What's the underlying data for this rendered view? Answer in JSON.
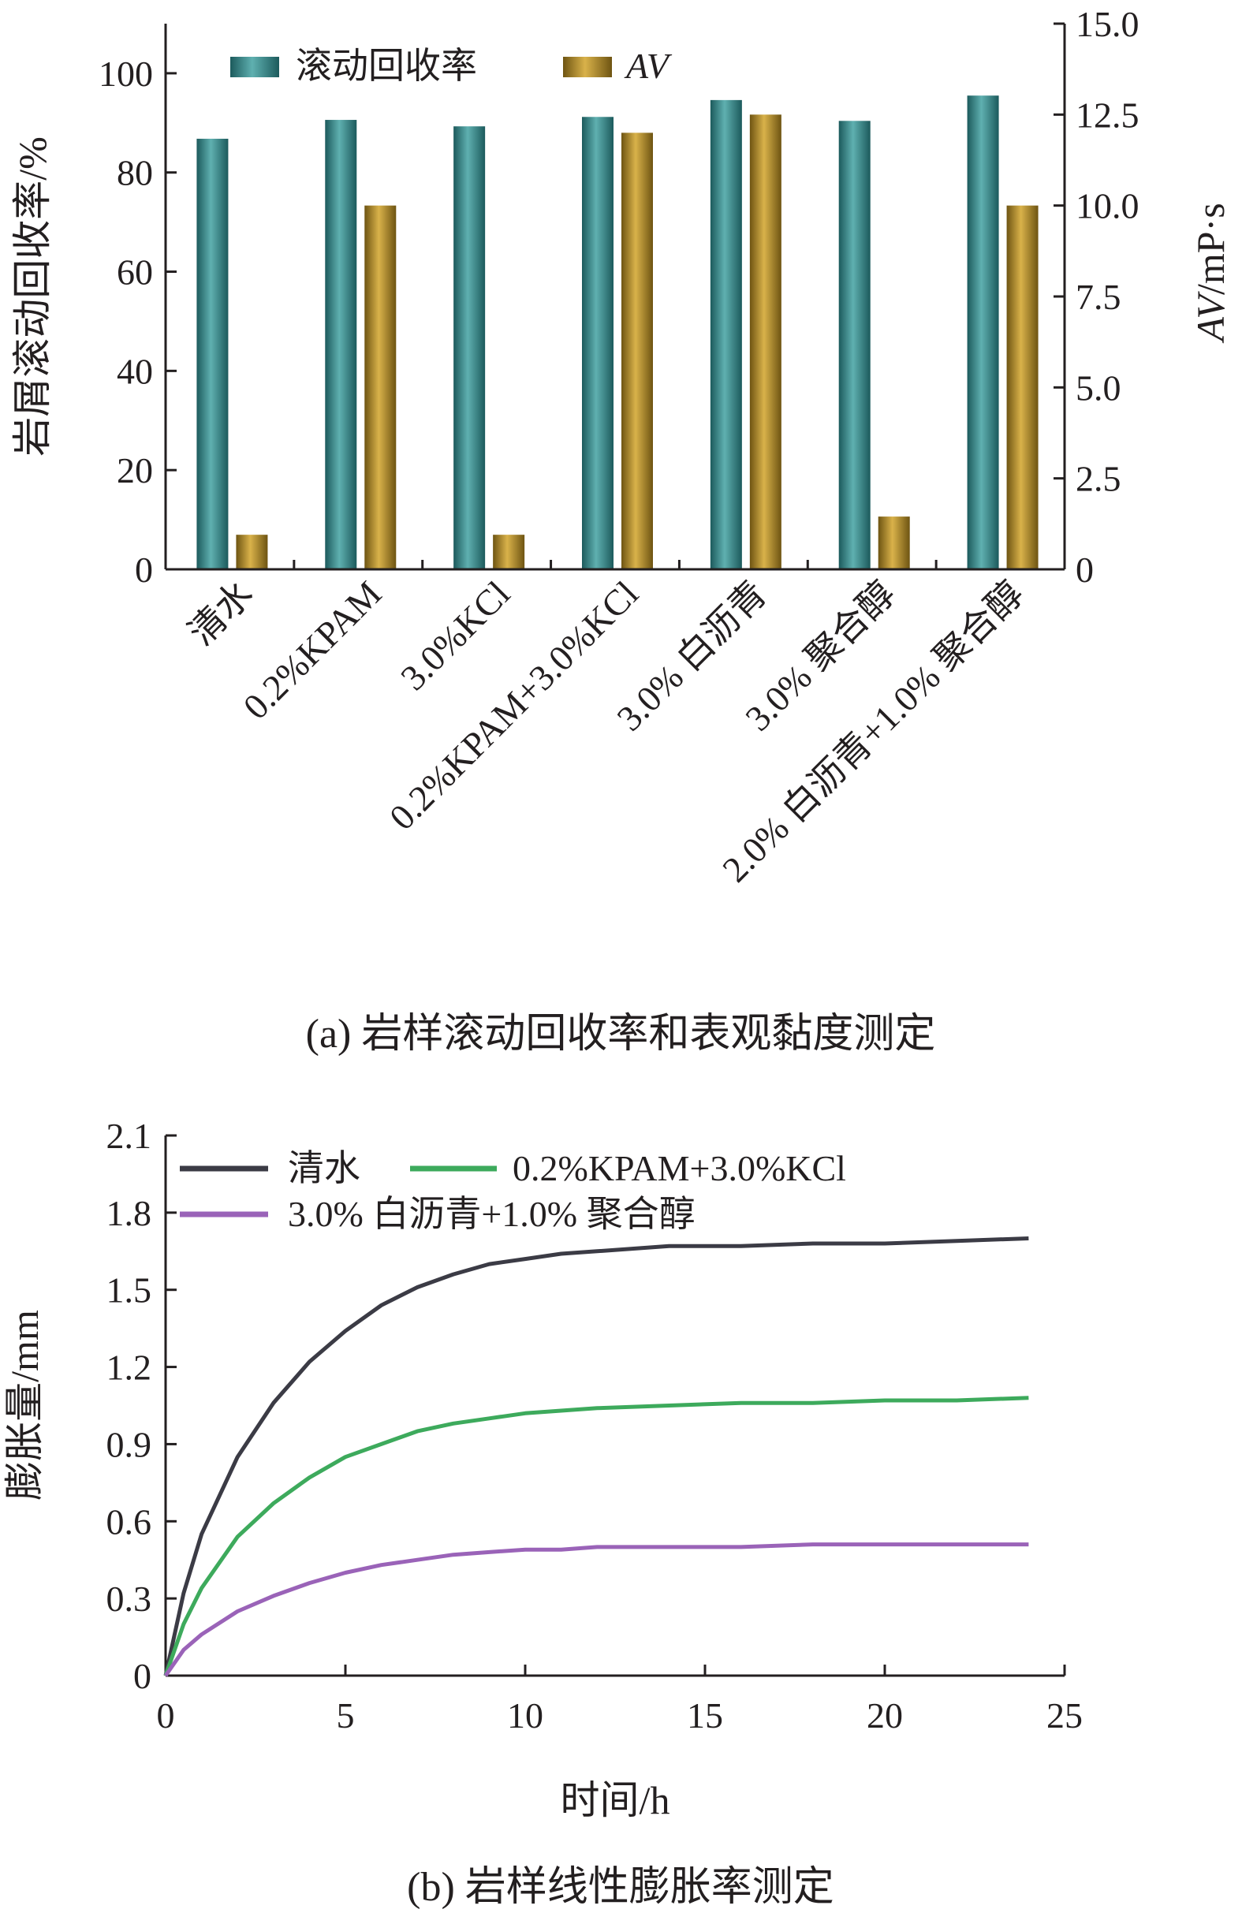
{
  "chart_data": [
    {
      "type": "bar",
      "caption": "(a) 岩样滚动回收率和表观黏度测定",
      "categories": [
        "清水",
        "0.2%KPAM",
        "3.0%KCl",
        "0.2%KPAM+3.0%KCl",
        "3.0% 白沥青",
        "3.0% 聚合醇",
        "2.0% 白沥青+1.0% 聚合醇"
      ],
      "ylabel": "岩屑滚动回收率/%",
      "ylabel_right": "AV/mP·s",
      "ylim": [
        0,
        110
      ],
      "ylim_right": [
        0,
        15
      ],
      "yticks": [
        "0",
        "20",
        "40",
        "60",
        "80",
        "100"
      ],
      "yticks_right": [
        "0",
        "2.5",
        "5.0",
        "7.5",
        "10.0",
        "12.5",
        "15.0"
      ],
      "legend_position": "top-left",
      "grid": false,
      "series": [
        {
          "name": "滚动回收率",
          "axis": "left",
          "color": "#2e7f80",
          "values": [
            86.8,
            90.6,
            89.3,
            91.2,
            94.6,
            90.4,
            95.5
          ]
        },
        {
          "name": "AV",
          "axis": "right",
          "color": "#a8841f",
          "values": [
            0.95,
            10.0,
            0.95,
            12.0,
            12.5,
            1.45,
            10.0
          ]
        }
      ]
    },
    {
      "type": "line",
      "caption": "(b) 岩样线性膨胀率测定",
      "xlabel": "时间/h",
      "ylabel": "膨胀量/mm",
      "xlim": [
        0,
        25
      ],
      "ylim": [
        0,
        2.1
      ],
      "xticks": [
        "0",
        "5",
        "10",
        "15",
        "20",
        "25"
      ],
      "yticks": [
        "0",
        "0.3",
        "0.6",
        "0.9",
        "1.2",
        "1.5",
        "1.8",
        "2.1"
      ],
      "legend_position": "top-left",
      "grid": false,
      "series": [
        {
          "name": "清水",
          "color": "#3b3b45",
          "x": [
            0,
            0.5,
            1,
            2,
            3,
            4,
            5,
            6,
            7,
            8,
            9,
            10,
            11,
            12,
            14,
            16,
            18,
            20,
            22,
            24
          ],
          "y": [
            0,
            0.32,
            0.55,
            0.85,
            1.06,
            1.22,
            1.34,
            1.44,
            1.51,
            1.56,
            1.6,
            1.62,
            1.64,
            1.65,
            1.67,
            1.67,
            1.68,
            1.68,
            1.69,
            1.7
          ]
        },
        {
          "name": "0.2%KPAM+3.0%KCl",
          "color": "#3daa5c",
          "x": [
            0,
            0.5,
            1,
            2,
            3,
            4,
            5,
            6,
            7,
            8,
            9,
            10,
            11,
            12,
            14,
            16,
            18,
            20,
            22,
            24
          ],
          "y": [
            0,
            0.2,
            0.34,
            0.54,
            0.67,
            0.77,
            0.85,
            0.9,
            0.95,
            0.98,
            1.0,
            1.02,
            1.03,
            1.04,
            1.05,
            1.06,
            1.06,
            1.07,
            1.07,
            1.08
          ]
        },
        {
          "name": "3.0% 白沥青+1.0% 聚合醇",
          "color": "#9a63b8",
          "x": [
            0,
            0.5,
            1,
            2,
            3,
            4,
            5,
            6,
            7,
            8,
            9,
            10,
            11,
            12,
            14,
            16,
            18,
            20,
            22,
            24
          ],
          "y": [
            0,
            0.1,
            0.16,
            0.25,
            0.31,
            0.36,
            0.4,
            0.43,
            0.45,
            0.47,
            0.48,
            0.49,
            0.49,
            0.5,
            0.5,
            0.5,
            0.51,
            0.51,
            0.51,
            0.51
          ]
        }
      ]
    }
  ]
}
